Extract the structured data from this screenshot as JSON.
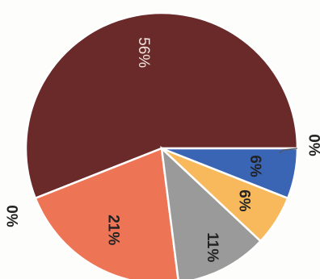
{
  "chart_data": {
    "type": "pie",
    "title": "",
    "slices": [
      {
        "label": "",
        "value": 56,
        "display": "56%",
        "color": "#6b2a2a"
      },
      {
        "label": "",
        "value": 0,
        "display": "0%",
        "color": "#6b2a2a"
      },
      {
        "label": "",
        "value": 21,
        "display": "21%",
        "color": "#ee7456"
      },
      {
        "label": "",
        "value": 11,
        "display": "11%",
        "color": "#9a9a9a"
      },
      {
        "label": "",
        "value": 6,
        "display": "6%",
        "color": "#f7b95c"
      },
      {
        "label": "",
        "value": 6,
        "display": "6%",
        "color": "#3a65b5"
      },
      {
        "label": "",
        "value": 0,
        "display": "0%",
        "color": "#3a65b5"
      }
    ],
    "labels_rotated": true,
    "legend": "none"
  }
}
